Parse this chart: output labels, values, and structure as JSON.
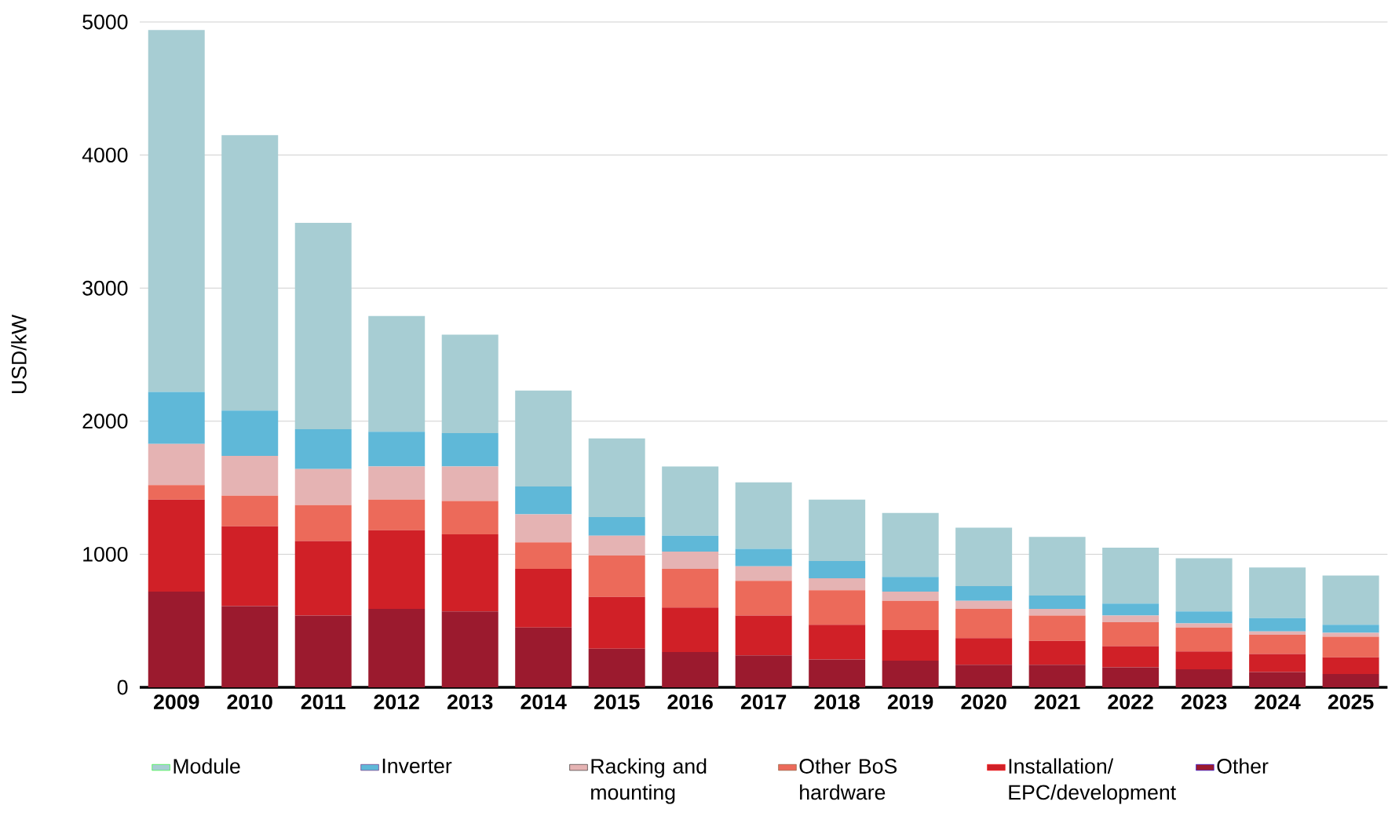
{
  "chart_data": {
    "type": "bar",
    "stacked": true,
    "ylabel": "USD/kW",
    "categories": [
      "2009",
      "2010",
      "2011",
      "2012",
      "2013",
      "2014",
      "2015",
      "2016",
      "2017",
      "2018",
      "2019",
      "2020",
      "2021",
      "2022",
      "2023",
      "2024",
      "2025"
    ],
    "series": [
      {
        "name": "Other",
        "color": "#9b1a2e",
        "values": [
          720,
          610,
          540,
          590,
          570,
          450,
          290,
          265,
          240,
          210,
          200,
          170,
          170,
          150,
          135,
          115,
          100
        ]
      },
      {
        "name": "Installation/ EPC/development",
        "color": "#d02027",
        "values": [
          690,
          600,
          560,
          590,
          580,
          440,
          390,
          335,
          300,
          260,
          230,
          200,
          180,
          160,
          135,
          135,
          125
        ]
      },
      {
        "name": "Other BoS hardware",
        "color": "#ec6a5a",
        "values": [
          110,
          230,
          270,
          230,
          250,
          200,
          310,
          290,
          260,
          260,
          220,
          220,
          190,
          180,
          180,
          145,
          155
        ]
      },
      {
        "name": "Racking and mounting",
        "color": "#e5b3b3",
        "values": [
          310,
          300,
          270,
          250,
          260,
          210,
          150,
          130,
          110,
          90,
          70,
          60,
          50,
          50,
          30,
          25,
          30
        ]
      },
      {
        "name": "Inverter",
        "color": "#5fb8d8",
        "values": [
          390,
          340,
          300,
          260,
          250,
          210,
          140,
          120,
          130,
          130,
          110,
          110,
          100,
          90,
          90,
          100,
          60
        ]
      },
      {
        "name": "Module",
        "color": "#a7cdd3",
        "values": [
          2720,
          2070,
          1550,
          870,
          740,
          720,
          590,
          520,
          500,
          460,
          480,
          440,
          440,
          420,
          400,
          380,
          370
        ]
      }
    ],
    "ylim": [
      0,
      5000
    ],
    "yticks": [
      0,
      1000,
      2000,
      3000,
      4000,
      5000
    ],
    "grid": "y",
    "legend": "bottom"
  }
}
